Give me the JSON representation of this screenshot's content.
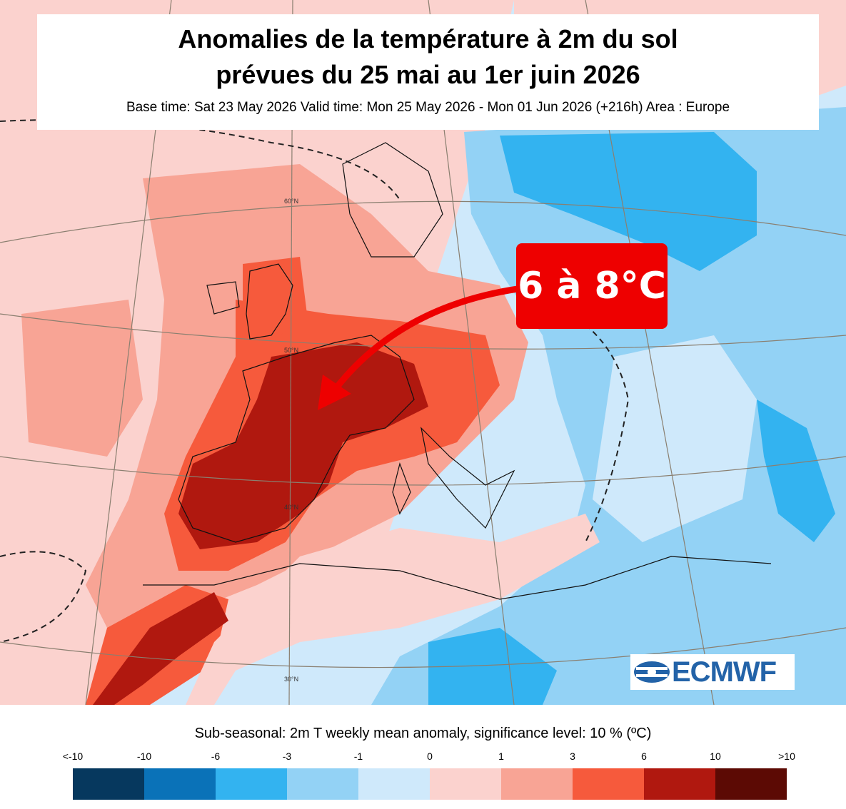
{
  "header": {
    "title_line1": "Anomalies de la température à 2m du sol",
    "title_line2": "prévues du 25 mai au 1er juin 2026",
    "subtitle": "Base time: Sat 23 May 2026 Valid time: Mon 25 May 2026 - Mon 01 Jun 2026 (+216h) Area : Europe"
  },
  "callout": {
    "text": "6 à 8°C",
    "color": "#ee0000"
  },
  "map": {
    "latitude_labels": [
      "60°N",
      "50°N",
      "40°N",
      "30°N"
    ],
    "colors": {
      "ocean_default": "#cfe9fb",
      "warm_light": "#fbd2ce",
      "warm_medium": "#f8a495",
      "warm_strong": "#f65a3c",
      "warm_very_strong": "#b0180f",
      "warm_extreme": "#5c0a04",
      "cool_light": "#cfe9fb",
      "cool_medium": "#93d2f5",
      "cool_strong": "#33b3f0"
    }
  },
  "logo": {
    "text": "ECMWF",
    "color": "#2363a8",
    "icon": "ecmwf-logo-icon"
  },
  "legend": {
    "title": "Sub-seasonal: 2m T weekly mean anomaly, significance level: 10 % (ºC)",
    "ticks": [
      "<-10",
      "-10",
      "-6",
      "-3",
      "-1",
      "0",
      "1",
      "3",
      "6",
      "10",
      ">10"
    ],
    "colors": [
      "#06385e",
      "#0a72b8",
      "#33b3f0",
      "#93d2f5",
      "#cfe9fb",
      "#fbd2ce",
      "#f8a495",
      "#f65a3c",
      "#b0180f",
      "#5c0a04"
    ]
  }
}
